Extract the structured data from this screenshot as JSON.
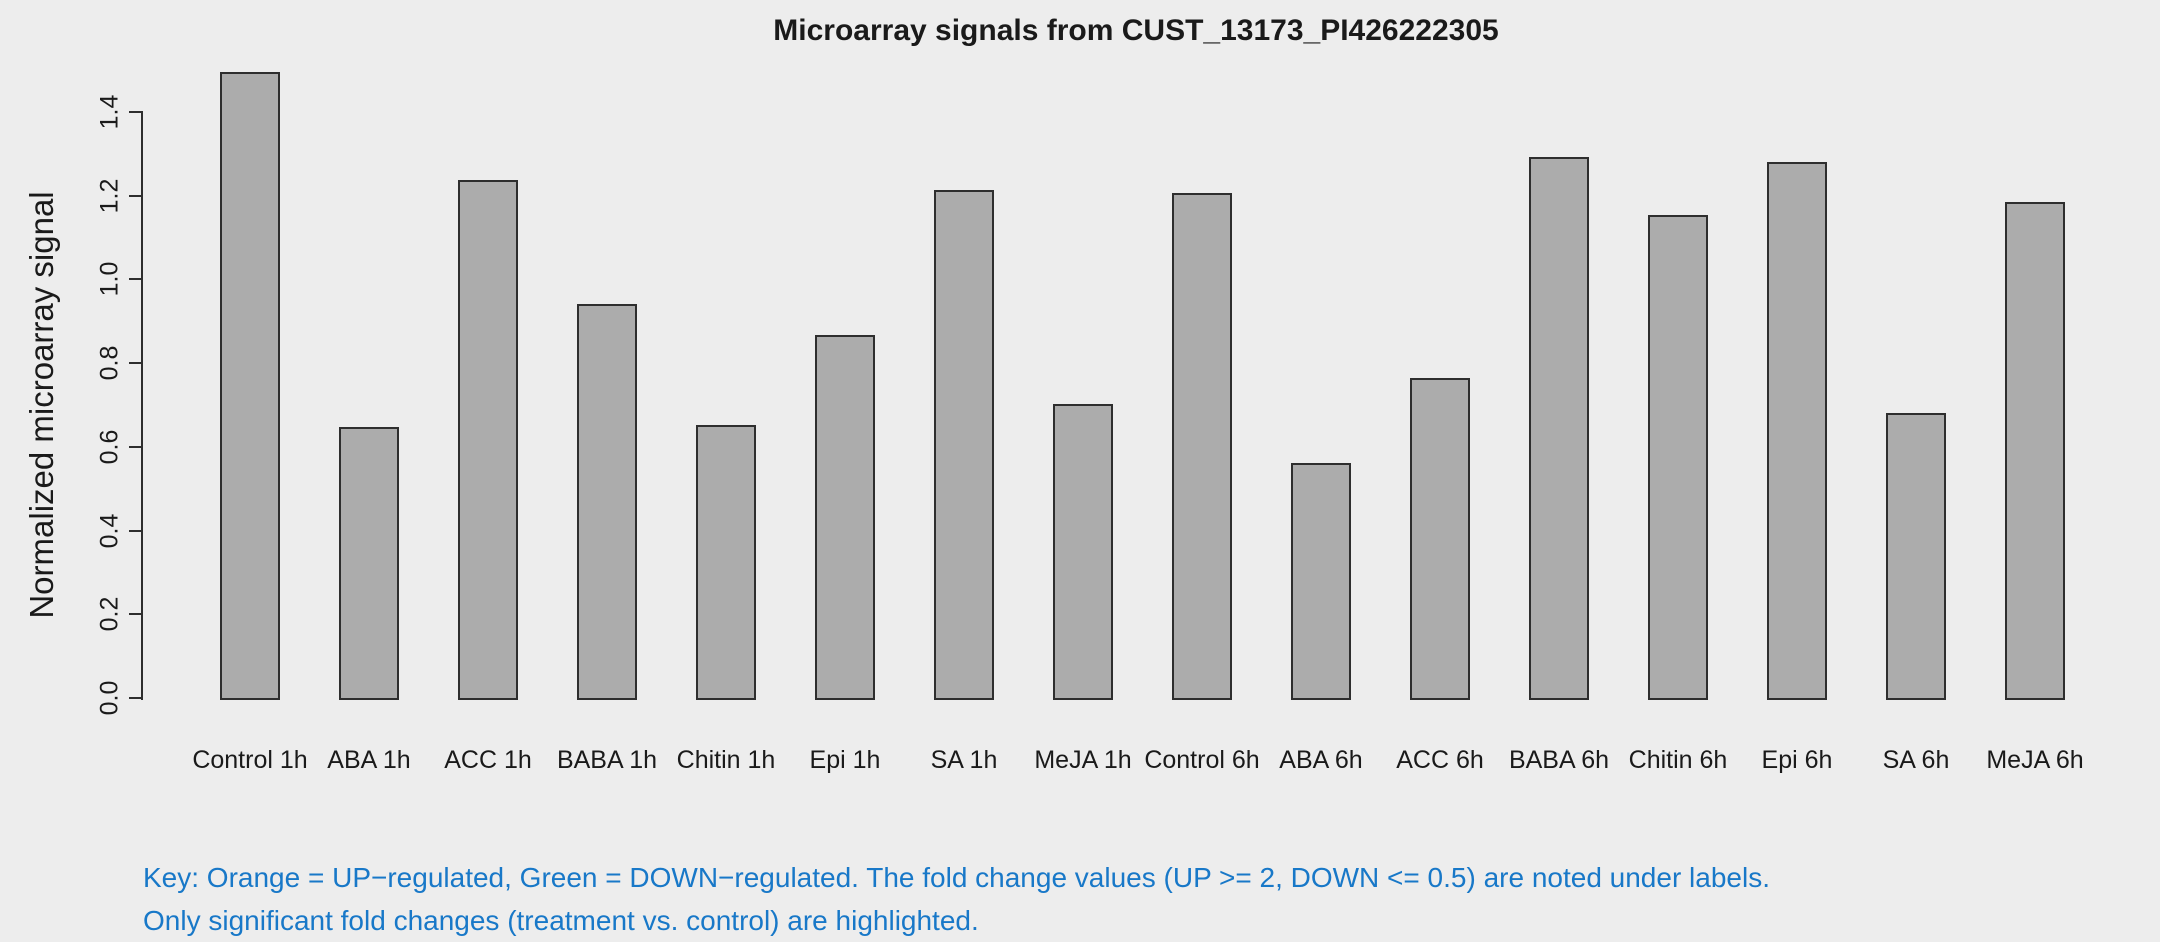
{
  "title": "Microarray signals from CUST_13173_PI426222305",
  "y_axis": {
    "label": "Normalized microarray signal",
    "ticks": [
      "0.0",
      "0.2",
      "0.4",
      "0.6",
      "0.8",
      "1.0",
      "1.2",
      "1.4"
    ]
  },
  "key_note": {
    "line1": "Key: Orange = UP−regulated, Green = DOWN−regulated. The fold change values (UP >= 2, DOWN <= 0.5) are noted under labels.",
    "line2": "Only significant fold changes (treatment vs. control) are highlighted."
  },
  "colors": {
    "background": "#EDEDED",
    "bar_fill": "#ACACAC",
    "bar_border": "#2E2E2E",
    "axis": "#2E2E2E",
    "text": "#1A1A1A",
    "note_blue": "#1878C8"
  },
  "chart_data": {
    "type": "bar",
    "title": "Microarray signals from CUST_13173_PI426222305",
    "xlabel": "",
    "ylabel": "Normalized microarray signal",
    "categories": [
      "Control 1h",
      "ABA 1h",
      "ACC 1h",
      "BABA 1h",
      "Chitin 1h",
      "Epi 1h",
      "SA 1h",
      "MeJA 1h",
      "Control 6h",
      "ABA 6h",
      "ACC 6h",
      "BABA 6h",
      "Chitin 6h",
      "Epi 6h",
      "SA 6h",
      "MeJA 6h"
    ],
    "values": [
      1.495,
      0.648,
      1.237,
      0.941,
      0.652,
      0.867,
      1.213,
      0.702,
      1.206,
      0.561,
      0.764,
      1.292,
      1.154,
      1.281,
      0.681,
      1.185
    ],
    "ylim": [
      0,
      1.4
    ],
    "ytick_step": 0.2,
    "grid": false,
    "legend": false,
    "bar_color": "#ACACAC"
  }
}
